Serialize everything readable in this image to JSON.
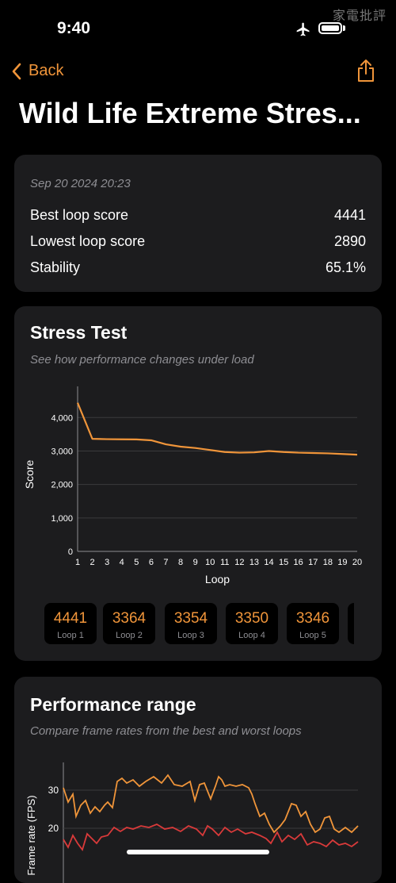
{
  "status": {
    "time": "9:40",
    "watermark": "家電批評"
  },
  "nav": {
    "back_label": "Back"
  },
  "page": {
    "title": "Wild Life Extreme Stres..."
  },
  "summary": {
    "date": "Sep 20 2024 20:23",
    "rows": [
      {
        "label": "Best loop score",
        "value": "4441"
      },
      {
        "label": "Lowest loop score",
        "value": "2890"
      },
      {
        "label": "Stability",
        "value": "65.1%"
      }
    ]
  },
  "stress": {
    "title": "Stress Test",
    "subtitle": "See how performance changes under load",
    "chart_data": {
      "type": "line",
      "xlabel": "Loop",
      "ylabel": "Score",
      "x": [
        1,
        2,
        3,
        4,
        5,
        6,
        7,
        8,
        9,
        10,
        11,
        12,
        13,
        14,
        15,
        16,
        17,
        18,
        19,
        20
      ],
      "y_ticks": [
        "0",
        "1,000",
        "2,000",
        "3,000",
        "4,000"
      ],
      "ylim": [
        0,
        4600
      ],
      "series": [
        {
          "values": [
            4441,
            3364,
            3354,
            3350,
            3346,
            3320,
            3200,
            3130,
            3090,
            3030,
            2970,
            2950,
            2960,
            3000,
            2970,
            2950,
            2940,
            2930,
            2910,
            2890
          ]
        }
      ],
      "colors": {
        "line": "#f0953a"
      }
    },
    "tiles": [
      {
        "value": "4441",
        "label": "Loop 1"
      },
      {
        "value": "3364",
        "label": "Loop 2"
      },
      {
        "value": "3354",
        "label": "Loop 3"
      },
      {
        "value": "3350",
        "label": "Loop 4"
      },
      {
        "value": "3346",
        "label": "Loop 5"
      }
    ]
  },
  "perf": {
    "title": "Performance range",
    "subtitle": "Compare frame rates from the best and worst loops",
    "ylabel": "Frame rate (FPS)",
    "y_ticks": [
      "30",
      "20"
    ],
    "colors": {
      "best": "#f0953a",
      "worst": "#d93a3a"
    }
  }
}
